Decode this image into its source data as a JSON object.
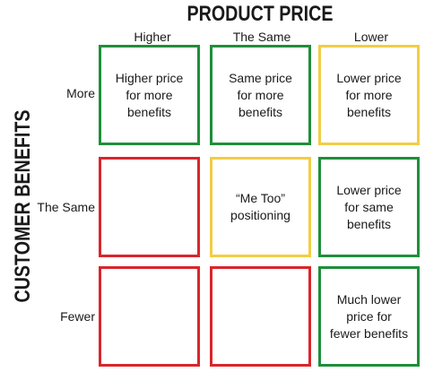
{
  "title_top": "PRODUCT PRICE",
  "title_side": "CUSTOMER BENEFITS",
  "columns": [
    "Higher",
    "The Same",
    "Lower"
  ],
  "rows": [
    "More",
    "The Same",
    "Fewer"
  ],
  "colors": {
    "green": "#1f8f3a",
    "yellow": "#f2cd45",
    "red": "#d9262c"
  },
  "cells": [
    [
      {
        "text": "Higher price\nfor more\nbenefits",
        "color": "green"
      },
      {
        "text": "Same price\nfor more\nbenefits",
        "color": "green"
      },
      {
        "text": "Lower price\nfor more\nbenefits",
        "color": "yellow"
      }
    ],
    [
      {
        "text": "",
        "color": "red"
      },
      {
        "text": "“Me Too”\npositioning",
        "color": "yellow"
      },
      {
        "text": "Lower price\nfor same\nbenefits",
        "color": "green"
      }
    ],
    [
      {
        "text": "",
        "color": "red"
      },
      {
        "text": "",
        "color": "red"
      },
      {
        "text": "Much lower\nprice for\nfewer benefits",
        "color": "green"
      }
    ]
  ]
}
